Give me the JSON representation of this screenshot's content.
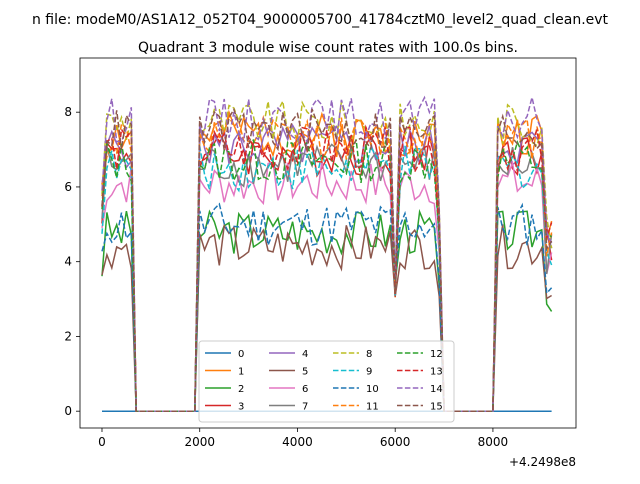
{
  "suptitle": "n file: modeM0/AS1A12_052T04_9000005700_41784cztM0_level2_quad_clean.evt",
  "chart_data": {
    "type": "line",
    "title": "Quadrant 3 module wise count rates with 100.0s bins.",
    "xlabel": "",
    "ylabel": "",
    "x_offset_label": "+4.2498e8",
    "xlim": [
      -450,
      9700
    ],
    "ylim": [
      -0.45,
      9.45
    ],
    "xticks": [
      0,
      2000,
      4000,
      6000,
      8000
    ],
    "xtick_labels": [
      "0",
      "2000",
      "4000",
      "6000",
      "8000"
    ],
    "yticks": [
      0,
      2,
      4,
      6,
      8
    ],
    "ytick_labels": [
      "0",
      "2",
      "4",
      "6",
      "8"
    ],
    "grid": false,
    "legend_placement": "lower center",
    "legend_ncol": 4,
    "segments": [
      [
        0,
        600
      ],
      [
        1900,
        8100
      ]
    ],
    "series": [
      {
        "name": "0",
        "color": "#1f77b4",
        "dash": "solid",
        "shape": "zero",
        "level": 0,
        "seed": 1
      },
      {
        "name": "1",
        "color": "#ff7f0e",
        "dash": "solid",
        "shape": "burst",
        "level": 7.4,
        "seed": 2
      },
      {
        "name": "2",
        "color": "#2ca02c",
        "dash": "solid",
        "shape": "burst",
        "level": 4.8,
        "seed": 3
      },
      {
        "name": "3",
        "color": "#d62728",
        "dash": "solid",
        "shape": "burst",
        "level": 6.9,
        "seed": 4
      },
      {
        "name": "4",
        "color": "#9467bd",
        "dash": "solid",
        "shape": "burst",
        "level": 7.1,
        "seed": 5
      },
      {
        "name": "5",
        "color": "#8c564b",
        "dash": "solid",
        "shape": "burst",
        "level": 4.4,
        "seed": 6
      },
      {
        "name": "6",
        "color": "#e377c2",
        "dash": "solid",
        "shape": "burst",
        "level": 6.1,
        "seed": 7
      },
      {
        "name": "7",
        "color": "#7f7f7f",
        "dash": "solid",
        "shape": "burst",
        "level": 6.6,
        "seed": 8
      },
      {
        "name": "8",
        "color": "#bcbd22",
        "dash": "dashed",
        "shape": "burst",
        "level": 7.7,
        "seed": 9
      },
      {
        "name": "9",
        "color": "#17becf",
        "dash": "dashed",
        "shape": "burst",
        "level": 6.5,
        "seed": 10
      },
      {
        "name": "10",
        "color": "#1f77b4",
        "dash": "dashed",
        "shape": "burst",
        "level": 5.0,
        "seed": 11
      },
      {
        "name": "11",
        "color": "#ff7f0e",
        "dash": "dashed",
        "shape": "burst",
        "level": 7.3,
        "seed": 12
      },
      {
        "name": "12",
        "color": "#2ca02c",
        "dash": "dashed",
        "shape": "burst",
        "level": 6.7,
        "seed": 13
      },
      {
        "name": "13",
        "color": "#d62728",
        "dash": "dashed",
        "shape": "burst",
        "level": 7.0,
        "seed": 14
      },
      {
        "name": "14",
        "color": "#9467bd",
        "dash": "dashed",
        "shape": "burst",
        "level": 7.8,
        "seed": 15
      },
      {
        "name": "15",
        "color": "#8c564b",
        "dash": "dashed",
        "shape": "burst",
        "level": 7.5,
        "seed": 16
      }
    ]
  }
}
